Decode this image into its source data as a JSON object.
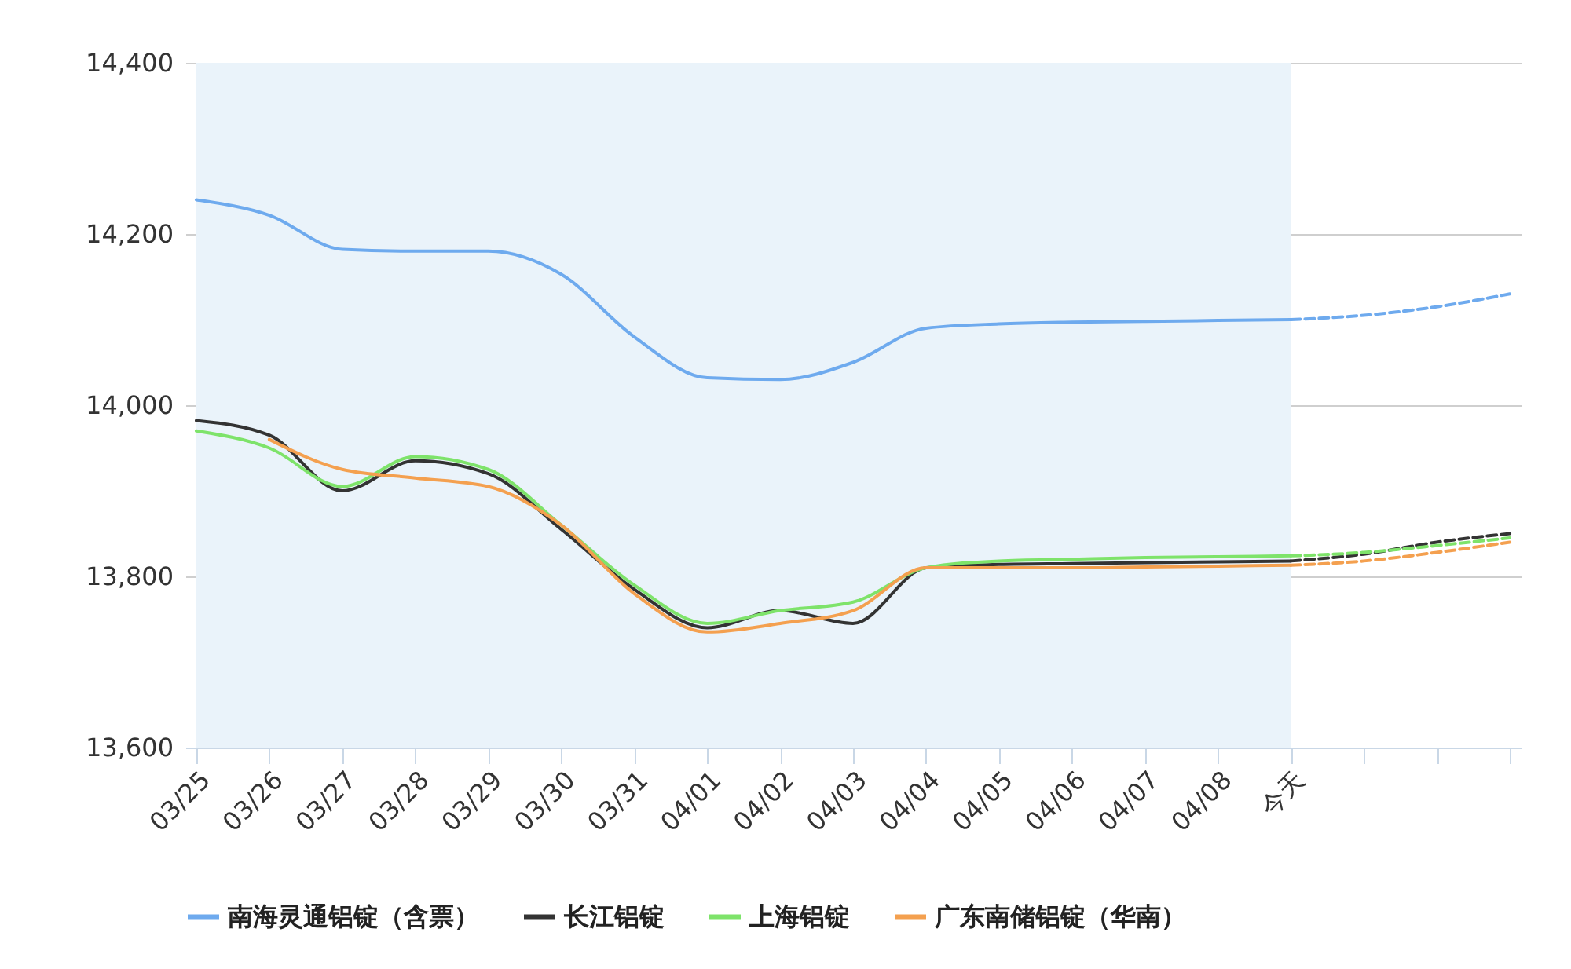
{
  "chart_data": {
    "type": "line",
    "categories": [
      "03/25",
      "03/26",
      "03/27",
      "03/28",
      "03/29",
      "03/30",
      "03/31",
      "04/01",
      "04/02",
      "04/03",
      "04/04",
      "04/05",
      "04/06",
      "04/07",
      "04/08",
      "今天",
      null,
      null,
      null
    ],
    "series": [
      {
        "name": "南海灵通铝锭（含票）",
        "color": "#6eaaee",
        "values": [
          14240,
          14222,
          14182,
          14180,
          14180,
          14153,
          14080,
          14032,
          14030,
          14050,
          14090,
          14095,
          14097,
          14098,
          14099,
          14100,
          null,
          null,
          null
        ]
      },
      {
        "name": "长江铝锭",
        "color": "#333333",
        "values": [
          13982,
          13965,
          13900,
          13935,
          13920,
          13855,
          13785,
          13740,
          13760,
          13745,
          13810,
          13814,
          13815,
          13816,
          13817,
          13818,
          null,
          null,
          null
        ]
      },
      {
        "name": "上海铝锭",
        "color": "#7ee36a",
        "values": [
          13970,
          13950,
          13905,
          13940,
          13925,
          13860,
          13790,
          13745,
          13760,
          13770,
          13810,
          13818,
          13820,
          13822,
          13823,
          13824,
          null,
          null,
          null
        ]
      },
      {
        "name": "广东南储铝锭（华南）",
        "color": "#f4a04f",
        "values": [
          null,
          13960,
          13925,
          13915,
          13905,
          13860,
          13780,
          13735,
          13745,
          13760,
          13810,
          13810,
          13810,
          13811,
          13812,
          13813,
          null,
          null,
          null
        ]
      },
      {
        "color": "#6eaaee",
        "line_style": "dashed",
        "values": [
          null,
          null,
          null,
          null,
          null,
          null,
          null,
          null,
          null,
          null,
          null,
          null,
          null,
          null,
          null,
          14100,
          14105,
          14115,
          14130
        ]
      },
      {
        "color": "#333333",
        "line_style": "dashed",
        "values": [
          null,
          null,
          null,
          null,
          null,
          null,
          null,
          null,
          null,
          null,
          null,
          null,
          null,
          null,
          null,
          13818,
          13826,
          13840,
          13850
        ]
      },
      {
        "color": "#7ee36a",
        "line_style": "dashed",
        "values": [
          null,
          null,
          null,
          null,
          null,
          null,
          null,
          null,
          null,
          null,
          null,
          null,
          null,
          null,
          null,
          13824,
          13828,
          13836,
          13845
        ]
      },
      {
        "color": "#f4a04f",
        "line_style": "dashed",
        "values": [
          null,
          null,
          null,
          null,
          null,
          null,
          null,
          null,
          null,
          null,
          null,
          null,
          null,
          null,
          null,
          13813,
          13818,
          13828,
          13840
        ]
      }
    ],
    "ylim": [
      13600,
      14400
    ],
    "yticks": [
      {
        "value": 13600,
        "label": "13,600"
      },
      {
        "value": 13800,
        "label": "13,800"
      },
      {
        "value": 14000,
        "label": "14,000"
      },
      {
        "value": 14200,
        "label": "14,200"
      },
      {
        "value": 14400,
        "label": "14,400"
      }
    ],
    "bands": [
      {
        "axis": "x",
        "from": "03/25",
        "to": "今天",
        "color": "#eaf3fa"
      }
    ],
    "grid": "y",
    "legend": "bottom",
    "marker": "none"
  }
}
